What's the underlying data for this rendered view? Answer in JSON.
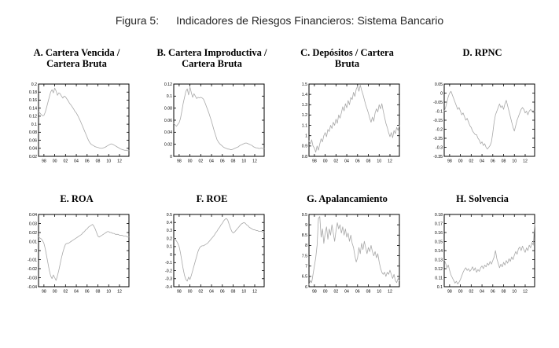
{
  "header": {
    "label": "Figura 5:",
    "title": "Indicadores de Riesgos Financieros: Sistema Bancario"
  },
  "colors": {
    "axis": "#000000",
    "line": "#a8a8a8",
    "tick_text": "#000000",
    "title_text": "#000000",
    "header_text": "#262626"
  },
  "chart_data": [
    {
      "panel": "A",
      "title_line1": "A. Cartera Vencida /",
      "title_line2": "Cartera Bruta",
      "type": "line",
      "x_start": 1997,
      "x_step": 0.25,
      "xlim": [
        1997,
        2013.75
      ],
      "ylim": [
        0.02,
        0.2
      ],
      "yticks": [
        "0.2",
        "0.18",
        "0.16",
        "0.14",
        "0.12",
        "0.1",
        "0.08",
        "0.06",
        "0.04",
        "0.02"
      ],
      "xtick_labels": [
        "98",
        "00",
        "02",
        "04",
        "06",
        "08",
        "10",
        "12"
      ],
      "xtick_values": [
        1998,
        2000,
        2002,
        2004,
        2006,
        2008,
        2010,
        2012
      ],
      "values": [
        0.13,
        0.128,
        0.124,
        0.121,
        0.122,
        0.13,
        0.142,
        0.155,
        0.168,
        0.18,
        0.186,
        0.178,
        0.19,
        0.183,
        0.172,
        0.178,
        0.176,
        0.17,
        0.165,
        0.17,
        0.168,
        0.163,
        0.158,
        0.152,
        0.148,
        0.143,
        0.138,
        0.132,
        0.128,
        0.122,
        0.115,
        0.108,
        0.1,
        0.092,
        0.084,
        0.076,
        0.068,
        0.06,
        0.054,
        0.05,
        0.048,
        0.046,
        0.044,
        0.043,
        0.042,
        0.041,
        0.04,
        0.04,
        0.041,
        0.042,
        0.044,
        0.046,
        0.048,
        0.05,
        0.051,
        0.05,
        0.048,
        0.046,
        0.044,
        0.042,
        0.04,
        0.038,
        0.037,
        0.036,
        0.035,
        0.035,
        0.034,
        0.034
      ]
    },
    {
      "panel": "B",
      "title_line1": "B. Cartera Improductiva /",
      "title_line2": "Cartera Bruta",
      "type": "line",
      "x_start": 1997,
      "x_step": 0.25,
      "xlim": [
        1997,
        2013.75
      ],
      "ylim": [
        0,
        0.12
      ],
      "yticks": [
        "0.12",
        "0.1",
        "0.08",
        "0.06",
        "0.04",
        "0.02",
        "0"
      ],
      "xtick_labels": [
        "98",
        "00",
        "02",
        "04",
        "06",
        "08",
        "10",
        "12"
      ],
      "xtick_values": [
        1998,
        2000,
        2002,
        2004,
        2006,
        2008,
        2010,
        2012
      ],
      "values": [
        0.055,
        0.052,
        0.05,
        0.053,
        0.056,
        0.063,
        0.075,
        0.088,
        0.098,
        0.108,
        0.112,
        0.102,
        0.115,
        0.106,
        0.098,
        0.104,
        0.1,
        0.096,
        0.098,
        0.097,
        0.098,
        0.097,
        0.095,
        0.09,
        0.084,
        0.078,
        0.072,
        0.065,
        0.058,
        0.05,
        0.042,
        0.035,
        0.028,
        0.024,
        0.021,
        0.019,
        0.017,
        0.015,
        0.014,
        0.013,
        0.012,
        0.012,
        0.011,
        0.011,
        0.012,
        0.013,
        0.014,
        0.015,
        0.016,
        0.018,
        0.019,
        0.02,
        0.021,
        0.022,
        0.022,
        0.021,
        0.02,
        0.019,
        0.018,
        0.016,
        0.015,
        0.014,
        0.014,
        0.013,
        0.013,
        0.014,
        0.013,
        0.013
      ]
    },
    {
      "panel": "C",
      "title_line1": "C. Depósitos / Cartera",
      "title_line2": "Bruta",
      "type": "line",
      "x_start": 1997,
      "x_step": 0.25,
      "xlim": [
        1997,
        2013.75
      ],
      "ylim": [
        0.8,
        1.5
      ],
      "yticks": [
        "1.5",
        "1.4",
        "1.3",
        "1.2",
        "1.1",
        "1",
        "0.9",
        "0.8"
      ],
      "xtick_labels": [
        "98",
        "00",
        "02",
        "04",
        "06",
        "08",
        "10",
        "12"
      ],
      "xtick_values": [
        1998,
        2000,
        2002,
        2004,
        2006,
        2008,
        2010,
        2012
      ],
      "values": [
        0.95,
        0.92,
        0.96,
        0.9,
        0.88,
        0.84,
        0.9,
        0.86,
        0.92,
        0.97,
        0.94,
        1.0,
        1.03,
        0.99,
        1.06,
        1.04,
        1.1,
        1.07,
        1.13,
        1.1,
        1.16,
        1.12,
        1.2,
        1.17,
        1.22,
        1.28,
        1.24,
        1.31,
        1.27,
        1.34,
        1.3,
        1.37,
        1.35,
        1.42,
        1.38,
        1.45,
        1.48,
        1.43,
        1.49,
        1.44,
        1.4,
        1.35,
        1.3,
        1.26,
        1.22,
        1.17,
        1.13,
        1.18,
        1.14,
        1.22,
        1.26,
        1.23,
        1.3,
        1.26,
        1.31,
        1.24,
        1.18,
        1.12,
        1.08,
        1.03,
        0.99,
        1.03,
        0.98,
        1.05,
        1.02,
        1.08,
        1.05,
        1.1
      ]
    },
    {
      "panel": "D",
      "title_line1": "D. RPNC",
      "title_line2": "",
      "type": "line",
      "x_start": 1997,
      "x_step": 0.25,
      "xlim": [
        1997,
        2013.75
      ],
      "ylim": [
        -0.35,
        0.05
      ],
      "yticks": [
        "0.05",
        "0",
        "-0.05",
        "-0.1",
        "-0.15",
        "-0.2",
        "-0.25",
        "-0.3",
        "-0.35"
      ],
      "xtick_labels": [
        "98",
        "00",
        "02",
        "04",
        "06",
        "08",
        "10",
        "12"
      ],
      "xtick_values": [
        1998,
        2000,
        2002,
        2004,
        2006,
        2008,
        2010,
        2012
      ],
      "values": [
        -0.1,
        -0.08,
        -0.05,
        -0.02,
        0.0,
        0.01,
        -0.01,
        -0.03,
        -0.05,
        -0.07,
        -0.09,
        -0.08,
        -0.1,
        -0.12,
        -0.11,
        -0.13,
        -0.15,
        -0.14,
        -0.16,
        -0.18,
        -0.19,
        -0.21,
        -0.22,
        -0.23,
        -0.23,
        -0.25,
        -0.26,
        -0.28,
        -0.27,
        -0.29,
        -0.28,
        -0.3,
        -0.31,
        -0.3,
        -0.29,
        -0.27,
        -0.22,
        -0.16,
        -0.12,
        -0.1,
        -0.08,
        -0.06,
        -0.08,
        -0.07,
        -0.09,
        -0.06,
        -0.04,
        -0.07,
        -0.1,
        -0.13,
        -0.16,
        -0.19,
        -0.21,
        -0.18,
        -0.15,
        -0.13,
        -0.11,
        -0.09,
        -0.08,
        -0.09,
        -0.11,
        -0.1,
        -0.12,
        -0.1,
        -0.09,
        -0.1,
        -0.11,
        -0.1
      ]
    },
    {
      "panel": "E",
      "title_line1": "E. ROA",
      "title_line2": "",
      "type": "line",
      "x_start": 1997,
      "x_step": 0.25,
      "xlim": [
        1997,
        2013.75
      ],
      "ylim": [
        -0.04,
        0.04
      ],
      "yticks": [
        "0.04",
        "0.03",
        "0.02",
        "0.01",
        "0",
        "-0.01",
        "-0.02",
        "-0.03",
        "-0.04"
      ],
      "xtick_labels": [
        "98",
        "00",
        "02",
        "04",
        "06",
        "08",
        "10",
        "12"
      ],
      "xtick_values": [
        1998,
        2000,
        2002,
        2004,
        2006,
        2008,
        2010,
        2012
      ],
      "values": [
        0.015,
        0.014,
        0.013,
        0.011,
        0.008,
        0.002,
        -0.006,
        -0.014,
        -0.022,
        -0.028,
        -0.031,
        -0.027,
        -0.03,
        -0.033,
        -0.028,
        -0.022,
        -0.015,
        -0.008,
        -0.002,
        0.003,
        0.007,
        0.008,
        0.008,
        0.009,
        0.01,
        0.011,
        0.012,
        0.013,
        0.014,
        0.015,
        0.016,
        0.017,
        0.018,
        0.02,
        0.021,
        0.023,
        0.024,
        0.026,
        0.027,
        0.028,
        0.029,
        0.027,
        0.024,
        0.02,
        0.016,
        0.015,
        0.016,
        0.017,
        0.018,
        0.019,
        0.02,
        0.021,
        0.021,
        0.02,
        0.02,
        0.019,
        0.019,
        0.018,
        0.018,
        0.018,
        0.017,
        0.017,
        0.017,
        0.016,
        0.016,
        0.016,
        0.015,
        0.015
      ]
    },
    {
      "panel": "F",
      "title_line1": "F. ROE",
      "title_line2": "",
      "type": "line",
      "x_start": 1997,
      "x_step": 0.25,
      "xlim": [
        1997,
        2013.75
      ],
      "ylim": [
        -0.4,
        0.5
      ],
      "yticks": [
        "0.5",
        "0.4",
        "0.3",
        "0.2",
        "0.1",
        "0",
        "-0.1",
        "-0.2",
        "-0.3",
        "-0.4"
      ],
      "xtick_labels": [
        "98",
        "00",
        "02",
        "04",
        "06",
        "08",
        "10",
        "12"
      ],
      "xtick_values": [
        1998,
        2000,
        2002,
        2004,
        2006,
        2008,
        2010,
        2012
      ],
      "values": [
        0.2,
        0.19,
        0.17,
        0.14,
        0.1,
        0.02,
        -0.08,
        -0.18,
        -0.26,
        -0.31,
        -0.33,
        -0.28,
        -0.31,
        -0.26,
        -0.2,
        -0.14,
        -0.08,
        -0.02,
        0.04,
        0.08,
        0.1,
        0.11,
        0.11,
        0.12,
        0.13,
        0.14,
        0.16,
        0.18,
        0.2,
        0.22,
        0.24,
        0.27,
        0.29,
        0.32,
        0.34,
        0.37,
        0.39,
        0.42,
        0.44,
        0.45,
        0.43,
        0.38,
        0.33,
        0.29,
        0.27,
        0.28,
        0.3,
        0.32,
        0.34,
        0.36,
        0.38,
        0.39,
        0.4,
        0.39,
        0.37,
        0.36,
        0.34,
        0.33,
        0.32,
        0.31,
        0.31,
        0.3,
        0.3,
        0.29,
        0.29,
        0.29,
        0.28,
        0.28
      ]
    },
    {
      "panel": "G",
      "title_line1": "G. Apalancamiento",
      "title_line2": "",
      "type": "line",
      "x_start": 1997,
      "x_step": 0.25,
      "xlim": [
        1997,
        2013.75
      ],
      "ylim": [
        6,
        9.5
      ],
      "yticks": [
        "9.5",
        "9",
        "8.5",
        "8",
        "7.5",
        "7",
        "6.5",
        "6"
      ],
      "xtick_labels": [
        "98",
        "00",
        "02",
        "04",
        "06",
        "08",
        "10",
        "12"
      ],
      "xtick_values": [
        1998,
        2000,
        2002,
        2004,
        2006,
        2008,
        2010,
        2012
      ],
      "values": [
        6.1,
        6.3,
        6.2,
        6.6,
        7.0,
        7.4,
        8.0,
        9.3,
        9.4,
        8.4,
        8.8,
        8.1,
        8.6,
        8.9,
        8.3,
        8.8,
        8.5,
        9.0,
        8.6,
        8.2,
        8.7,
        9.1,
        8.8,
        9.0,
        8.6,
        8.9,
        8.5,
        8.8,
        8.4,
        8.6,
        8.2,
        8.5,
        8.1,
        7.9,
        7.5,
        7.2,
        7.4,
        7.9,
        7.6,
        8.1,
        7.8,
        8.2,
        7.9,
        7.6,
        7.9,
        7.7,
        8.0,
        7.7,
        7.5,
        7.7,
        7.4,
        7.6,
        7.2,
        6.9,
        6.7,
        6.6,
        6.7,
        6.5,
        6.7,
        6.6,
        6.8,
        6.6,
        6.4,
        6.6,
        6.3,
        6.2,
        6.4,
        6.3
      ]
    },
    {
      "panel": "H",
      "title_line1": "H. Solvencia",
      "title_line2": "",
      "type": "line",
      "x_start": 1997,
      "x_step": 0.25,
      "xlim": [
        1997,
        2013.75
      ],
      "ylim": [
        0.1,
        0.18
      ],
      "yticks": [
        "0.18",
        "0.17",
        "0.16",
        "0.15",
        "0.14",
        "0.13",
        "0.12",
        "0.11",
        "0.1"
      ],
      "xtick_labels": [
        "98",
        "00",
        "02",
        "04",
        "06",
        "08",
        "10",
        "12"
      ],
      "xtick_values": [
        1998,
        2000,
        2002,
        2004,
        2006,
        2008,
        2010,
        2012
      ],
      "values": [
        0.13,
        0.126,
        0.121,
        0.124,
        0.118,
        0.113,
        0.11,
        0.107,
        0.104,
        0.106,
        0.103,
        0.105,
        0.108,
        0.112,
        0.116,
        0.119,
        0.121,
        0.118,
        0.12,
        0.117,
        0.119,
        0.122,
        0.118,
        0.121,
        0.116,
        0.119,
        0.117,
        0.121,
        0.123,
        0.12,
        0.124,
        0.122,
        0.126,
        0.124,
        0.128,
        0.125,
        0.129,
        0.133,
        0.14,
        0.131,
        0.126,
        0.121,
        0.125,
        0.122,
        0.127,
        0.124,
        0.129,
        0.126,
        0.131,
        0.128,
        0.133,
        0.13,
        0.135,
        0.139,
        0.136,
        0.142,
        0.144,
        0.14,
        0.145,
        0.141,
        0.138,
        0.143,
        0.14,
        0.146,
        0.143,
        0.149,
        0.146,
        0.17
      ]
    }
  ]
}
